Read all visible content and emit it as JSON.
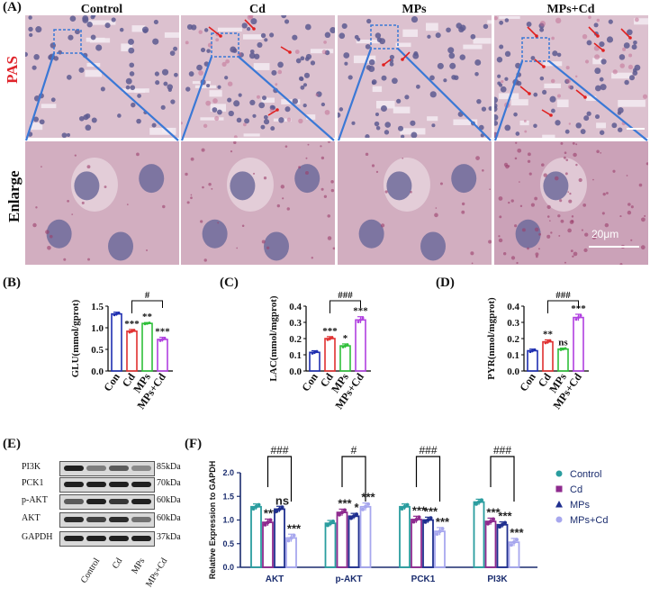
{
  "panel_a": {
    "label": "(A)",
    "columns": [
      "Control",
      "Cd",
      "MPs",
      "MPs+Cd"
    ],
    "row_labels": [
      "PAS",
      "Enlarge"
    ],
    "scale_bar": "20μm",
    "colors": {
      "pas_label": "#e0242b",
      "zoom_line": "#3a78d6",
      "arrow": "#e02020"
    }
  },
  "panel_b": {
    "label": "(B)"
  },
  "panel_c": {
    "label": "(C)"
  },
  "panel_d": {
    "label": "(D)"
  },
  "panel_e": {
    "label": "(E)",
    "proteins": [
      "PI3K",
      "PCK1",
      "p-AKT",
      "AKT",
      "GAPDH"
    ],
    "sizes": [
      "85kDa",
      "70kDa",
      "60kDa",
      "60kDa",
      "37kDa"
    ],
    "lanes": [
      "Control",
      "Cd",
      "MPs",
      "MPs+Cd"
    ]
  },
  "panel_f": {
    "label": "(F)"
  },
  "chart_data": [
    {
      "id": "B",
      "type": "bar",
      "ylabel": "GLU(mmol/gprot)",
      "categories": [
        "Con",
        "Cd",
        "MPs",
        "MPs+Cd"
      ],
      "values": [
        1.32,
        0.92,
        1.1,
        0.73
      ],
      "errors": [
        0.04,
        0.04,
        0.02,
        0.05
      ],
      "ylim": [
        0,
        1.5
      ],
      "yticks": [
        "0.0",
        "0.5",
        "1.0",
        "1.5"
      ],
      "colors": [
        "#1f2fb0",
        "#e03030",
        "#2fbf3a",
        "#b040e0"
      ],
      "sig": [
        "",
        "***",
        "**",
        "***"
      ],
      "bracket": {
        "from": 1,
        "to": 3,
        "label": "#"
      }
    },
    {
      "id": "C",
      "type": "bar",
      "ylabel": "LAC(mmol/mgprot)",
      "categories": [
        "Con",
        "Cd",
        "MPs",
        "MPs+Cd"
      ],
      "values": [
        0.115,
        0.2,
        0.155,
        0.315
      ],
      "errors": [
        0.01,
        0.012,
        0.012,
        0.02
      ],
      "ylim": [
        0,
        0.4
      ],
      "yticks": [
        "0.0",
        "0.1",
        "0.2",
        "0.3",
        "0.4"
      ],
      "colors": [
        "#1f2fb0",
        "#e03030",
        "#2fbf3a",
        "#b040e0"
      ],
      "sig": [
        "",
        "***",
        "*",
        "***"
      ],
      "bracket": {
        "from": 1,
        "to": 3,
        "label": "###"
      }
    },
    {
      "id": "D",
      "type": "bar",
      "ylabel": "PYR(nmol/mgprot)",
      "categories": [
        "Con",
        "Cd",
        "MPs",
        "MPs+Cd"
      ],
      "values": [
        0.125,
        0.18,
        0.135,
        0.33
      ],
      "errors": [
        0.01,
        0.012,
        0.006,
        0.02
      ],
      "ylim": [
        0,
        0.4
      ],
      "yticks": [
        "0.0",
        "0.1",
        "0.2",
        "0.3",
        "0.4"
      ],
      "colors": [
        "#1f2fb0",
        "#e03030",
        "#2fbf3a",
        "#b040e0"
      ],
      "sig": [
        "",
        "**",
        "ns",
        "***"
      ],
      "bracket": {
        "from": 1,
        "to": 3,
        "label": "###"
      }
    },
    {
      "id": "F",
      "type": "bar",
      "ylabel": "Relative Expression to GAPDH",
      "categories": [
        "AKT",
        "p-AKT",
        "PCK1",
        "PI3K"
      ],
      "ylim": [
        0,
        2.0
      ],
      "yticks": [
        "0.0",
        "0.5",
        "1.0",
        "1.5",
        "2.0"
      ],
      "series": [
        {
          "name": "Control",
          "values": [
            1.28,
            0.93,
            1.28,
            1.38
          ],
          "color": "#2a9d9f"
        },
        {
          "name": "Cd",
          "values": [
            0.95,
            1.16,
            1.01,
            0.97
          ],
          "color": "#8e2a8e"
        },
        {
          "name": "MPs",
          "values": [
            1.23,
            1.08,
            1.0,
            0.9
          ],
          "color": "#1f2f8f"
        },
        {
          "name": "MPs+Cd",
          "values": [
            0.62,
            1.28,
            0.76,
            0.53
          ],
          "color": "#a7a7ee"
        }
      ],
      "errors": [
        0.06,
        0.07,
        0.06,
        0.08
      ],
      "sig": [
        [
          "",
          "***",
          "ns",
          "***"
        ],
        [
          "",
          "***",
          "*",
          "***"
        ],
        [
          "",
          "***",
          "***",
          "***"
        ],
        [
          "",
          "***",
          "***",
          "***"
        ]
      ],
      "brackets": [
        "###",
        "#",
        "###",
        "###"
      ],
      "legend_position": "right"
    }
  ]
}
